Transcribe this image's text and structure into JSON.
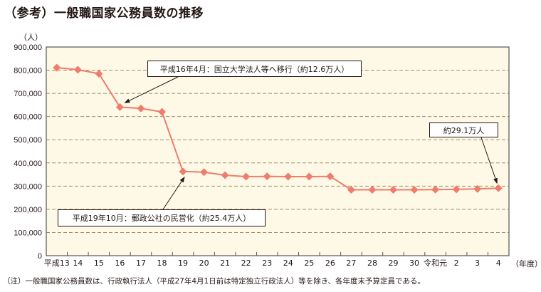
{
  "title": "（参考）一般職国家公務員数の推移",
  "y_unit": "（人）",
  "x_unit": "（年度）",
  "note": "（注）一般職国家公務員数は、行政執行法人（平成27年4月1日前は特定独立行政法人）等を除き、各年度末予算定員である。",
  "annotations": [
    {
      "id": "h16",
      "text": "平成16年4月：国立大学法人等へ移行（約12.6万人）"
    },
    {
      "id": "h19",
      "text": "平成19年10月：郵政公社の民営化（約25.4万人）"
    },
    {
      "id": "r4",
      "text": "約29.1万人"
    }
  ],
  "colors": {
    "plot_bg": "#fef9e6",
    "line": "#f07c6c",
    "grid": "#a08c6c",
    "axis": "#555555"
  },
  "chart_data": {
    "type": "line",
    "title": "（参考）一般職国家公務員数の推移",
    "xlabel": "（年度）",
    "ylabel": "（人）",
    "ylim": [
      0,
      900000
    ],
    "yticks": [
      0,
      100000,
      200000,
      300000,
      400000,
      500000,
      600000,
      700000,
      800000,
      900000
    ],
    "ytick_labels": [
      "0",
      "100,000",
      "200,000",
      "300,000",
      "400,000",
      "500,000",
      "600,000",
      "700,000",
      "800,000",
      "900,000"
    ],
    "grid": true,
    "legend": "none",
    "categories": [
      "平成13",
      "14",
      "15",
      "16",
      "17",
      "18",
      "19",
      "20",
      "21",
      "22",
      "23",
      "24",
      "25",
      "26",
      "27",
      "28",
      "29",
      "30",
      "令和元",
      "2",
      "3",
      "4"
    ],
    "series": [
      {
        "name": "一般職国家公務員数",
        "values": [
          811000,
          802000,
          785000,
          641000,
          635000,
          620000,
          363000,
          360000,
          347000,
          341000,
          342000,
          341000,
          341000,
          342000,
          284000,
          284000,
          284000,
          284000,
          285000,
          286000,
          288000,
          291000
        ]
      }
    ],
    "annotations": [
      {
        "text": "平成16年4月：国立大学法人等へ移行（約12.6万人）",
        "points_to": "16"
      },
      {
        "text": "平成19年10月：郵政公社の民営化（約25.4万人）",
        "points_to": "19"
      },
      {
        "text": "約29.1万人",
        "points_to": "4"
      }
    ]
  }
}
